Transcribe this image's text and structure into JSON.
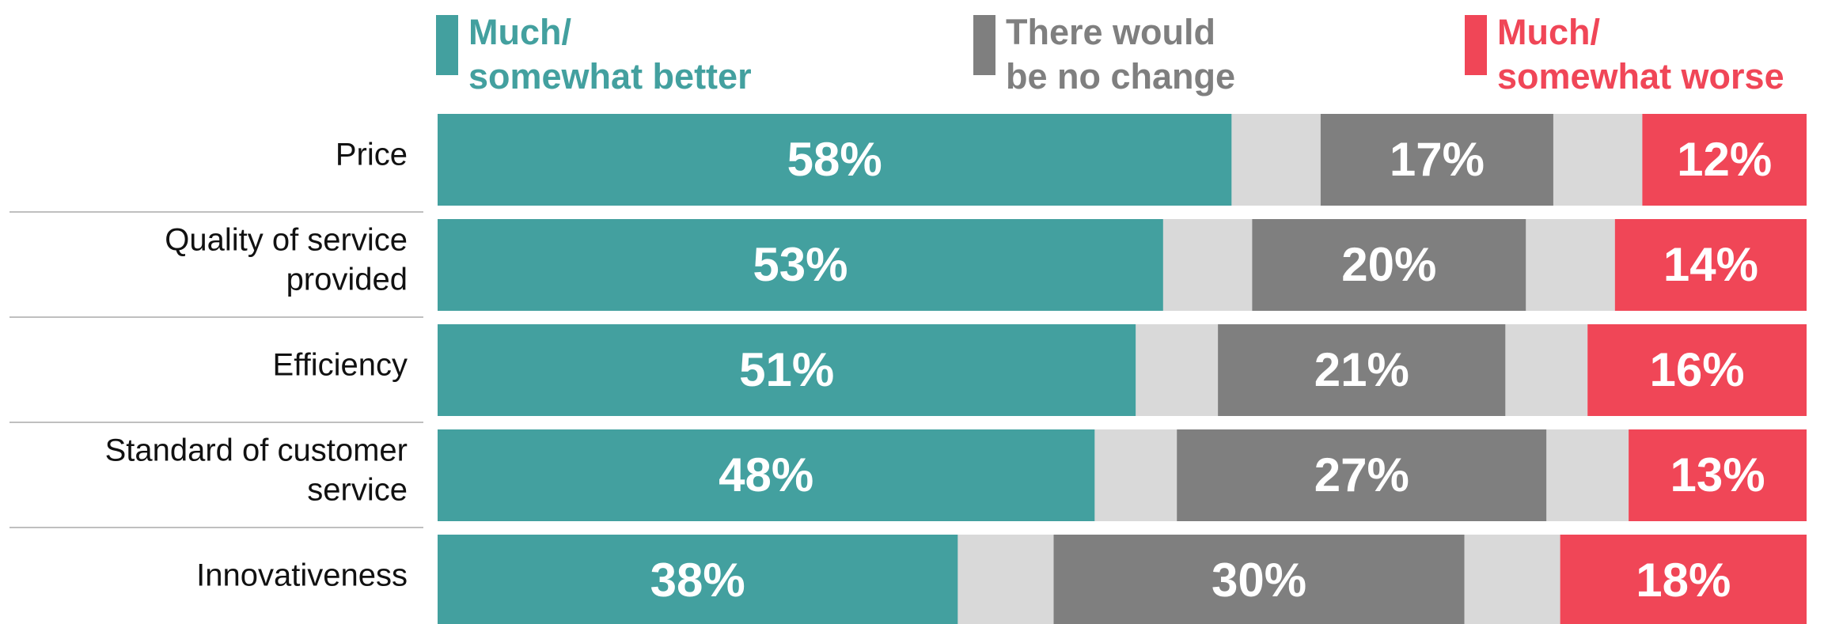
{
  "chart_data": {
    "type": "bar",
    "orientation": "horizontal",
    "stacked": true,
    "categories": [
      [
        "Price"
      ],
      [
        "Quality of service",
        "provided"
      ],
      [
        "Efficiency"
      ],
      [
        "Standard of customer",
        "service"
      ],
      [
        "Innovativeness"
      ]
    ],
    "series": [
      {
        "name": "Much/ somewhat better",
        "legend_lines": [
          "Much/",
          "somewhat better"
        ],
        "color": "#43a09f",
        "values": [
          58,
          53,
          51,
          48,
          38
        ],
        "labels": [
          "58%",
          "53%",
          "51%",
          "48%",
          "38%"
        ]
      },
      {
        "name": "There would be no change",
        "legend_lines": [
          "There would",
          "be no change"
        ],
        "color": "#7f7f7f",
        "values": [
          17,
          20,
          21,
          27,
          30
        ],
        "labels": [
          "17%",
          "20%",
          "21%",
          "27%",
          "30%"
        ]
      },
      {
        "name": "Much/ somewhat worse",
        "legend_lines": [
          "Much/",
          "somewhat worse"
        ],
        "color": "#f04657",
        "values": [
          12,
          14,
          16,
          13,
          18
        ],
        "labels": [
          "12%",
          "14%",
          "16%",
          "13%",
          "18%"
        ]
      }
    ],
    "remainder_color": "#d9d9d9",
    "xlim": [
      0,
      100
    ],
    "legend_position": "top",
    "grid": false
  }
}
